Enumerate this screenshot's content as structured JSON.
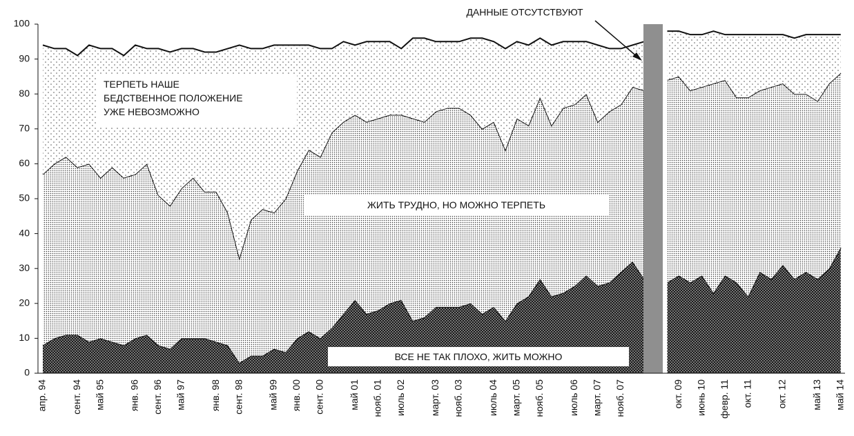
{
  "chart_data": {
    "type": "stacked_area",
    "annotation": "ДАННЫЕ ОТСУТСТВУЮТ",
    "categories": [
      "апр. 94",
      null,
      null,
      "сент. 94",
      null,
      "май 95",
      null,
      null,
      "янв. 96",
      null,
      "сент. 96",
      null,
      "май 97",
      null,
      null,
      "янв. 98",
      null,
      "сент. 98",
      null,
      null,
      "май 99",
      null,
      "янв. 00",
      null,
      "сент. 00",
      null,
      null,
      "май 01",
      null,
      "нояб. 01",
      null,
      "июль 02",
      null,
      null,
      "март. 03",
      null,
      "нояб. 03",
      null,
      null,
      "июль 04",
      null,
      "март. 05",
      null,
      "нояб. 05",
      null,
      null,
      "июль 06",
      null,
      "март. 07",
      null,
      "нояб. 07",
      null,
      null,
      null,
      null,
      "окт. 09",
      null,
      "июнь 10",
      null,
      "февр. 11",
      null,
      "окт. 11",
      null,
      null,
      "окт. 12",
      null,
      null,
      "май 13",
      null,
      "май 14"
    ],
    "series": [
      {
        "name": "ВСЕ НЕ ТАК ПЛОХО, ЖИТЬ МОЖНО",
        "color": "#1a1a1a",
        "values": [
          8,
          10,
          11,
          11,
          9,
          10,
          9,
          8,
          10,
          11,
          8,
          7,
          10,
          10,
          10,
          9,
          8,
          3,
          5,
          5,
          7,
          6,
          10,
          12,
          10,
          13,
          17,
          21,
          17,
          18,
          20,
          21,
          15,
          16,
          19,
          19,
          19,
          20,
          17,
          19,
          15,
          20,
          22,
          27,
          22,
          23,
          25,
          28,
          25,
          26,
          29,
          32,
          27,
          null,
          26,
          28,
          26,
          28,
          23,
          28,
          26,
          22,
          29,
          27,
          31,
          27,
          29,
          27,
          30,
          36
        ]
      },
      {
        "name": "ЖИТЬ ТРУДНО, НО МОЖНО ТЕРПЕТЬ",
        "color": "#3a3a3a",
        "values": [
          49,
          50,
          51,
          48,
          51,
          46,
          50,
          48,
          47,
          49,
          43,
          41,
          43,
          46,
          42,
          43,
          38,
          30,
          39,
          42,
          39,
          44,
          48,
          52,
          52,
          56,
          55,
          53,
          55,
          55,
          54,
          53,
          58,
          56,
          56,
          57,
          57,
          54,
          53,
          53,
          49,
          53,
          49,
          52,
          49,
          53,
          52,
          52,
          47,
          49,
          48,
          50,
          54,
          null,
          58,
          57,
          55,
          54,
          60,
          56,
          53,
          57,
          52,
          55,
          52,
          53,
          51,
          51,
          53,
          50
        ]
      },
      {
        "name": "ТЕРПЕТЬ НАШЕ\nБЕДСТВЕННОЕ ПОЛОЖЕНИЕ\nУЖЕ НЕВОЗМОЖНО",
        "color": "#555555",
        "values": [
          37,
          33,
          31,
          32,
          34,
          37,
          34,
          35,
          37,
          33,
          42,
          44,
          40,
          37,
          40,
          40,
          47,
          61,
          49,
          46,
          48,
          44,
          36,
          30,
          31,
          24,
          23,
          20,
          23,
          22,
          21,
          19,
          23,
          24,
          20,
          19,
          19,
          22,
          26,
          23,
          29,
          22,
          23,
          17,
          23,
          19,
          18,
          15,
          22,
          18,
          16,
          12,
          14,
          null,
          14,
          13,
          16,
          15,
          15,
          13,
          18,
          18,
          16,
          15,
          14,
          16,
          17,
          19,
          14,
          11
        ]
      }
    ],
    "ylim": [
      0,
      100
    ],
    "yticks": [
      0,
      10,
      20,
      30,
      40,
      50,
      60,
      70,
      80,
      90,
      100
    ]
  }
}
